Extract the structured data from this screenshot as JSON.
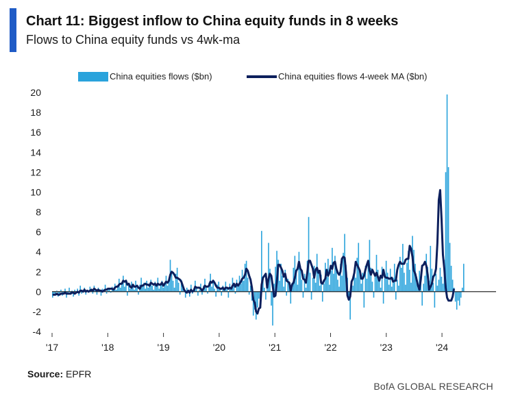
{
  "header": {
    "title": "Chart 11: Biggest inflow to China equity funds in 8 weeks",
    "subtitle": "Flows to China equity funds vs 4wk-ma"
  },
  "legend": {
    "bar_label": "China equities flows ($bn)",
    "line_label": "China equities flows 4-week MA ($bn)"
  },
  "footer": {
    "source_label": "Source:",
    "source_value": "EPFR",
    "brand": "BofA GLOBAL RESEARCH"
  },
  "colors": {
    "bars": "#2aa3dc",
    "line": "#0c1f5c",
    "accent": "#1f5bc6"
  },
  "chart_data": {
    "type": "bar",
    "title": "Chart 11: Biggest inflow to China equity funds in 8 weeks",
    "subtitle": "Flows to China equity funds vs 4wk-ma",
    "xlabel": "",
    "ylabel": "",
    "ylim": [
      -4,
      20
    ],
    "yticks": [
      -4,
      -2,
      0,
      2,
      4,
      6,
      8,
      10,
      12,
      14,
      16,
      18,
      20
    ],
    "xtick_labels": [
      "'17",
      "'18",
      "'19",
      "'20",
      "'21",
      "'22",
      "'23",
      "'24"
    ],
    "grid": false,
    "legend_position": "top",
    "x_frequency": "weekly",
    "x_start": "2017-01",
    "x_end": "2024-05",
    "series": [
      {
        "name": "China equities flows ($bn)",
        "type": "bar",
        "values": [
          -0.6,
          -0.2,
          -0.4,
          0.1,
          -0.5,
          -0.3,
          0.2,
          -0.4,
          -0.1,
          0.3,
          -0.6,
          -0.2,
          0.4,
          -0.3,
          0.1,
          -0.5,
          0.2,
          -0.1,
          0.3,
          -0.4,
          0.6,
          -0.2,
          0.1,
          0.4,
          -0.3,
          0.2,
          -0.1,
          0.5,
          0.3,
          -0.2,
          0.6,
          0.1,
          -0.3,
          0.4,
          0.2,
          -0.4,
          0.3,
          0.1,
          0.7,
          -0.2,
          0.4,
          0.2,
          -0.1,
          0.5,
          0.3,
          0.8,
          0.2,
          0.6,
          1.3,
          0.4,
          0.9,
          1.6,
          0.5,
          1.2,
          -0.4,
          0.8,
          0.3,
          1.0,
          0.6,
          0.2,
          1.1,
          0.4,
          -0.3,
          0.7,
          1.4,
          0.5,
          0.9,
          0.3,
          1.1,
          0.4,
          0.8,
          1.2,
          0.6,
          0.2,
          1.0,
          0.5,
          1.4,
          0.3,
          0.7,
          1.1,
          0.4,
          0.9,
          1.6,
          0.6,
          1.2,
          3.2,
          2.1,
          1.1,
          0.4,
          1.8,
          2.4,
          0.9,
          -0.3,
          1.2,
          0.5,
          0.2,
          -0.6,
          0.4,
          0.1,
          -0.5,
          0.7,
          -0.2,
          0.3,
          1.1,
          0.5,
          -0.4,
          0.2,
          0.8,
          -0.3,
          0.6,
          1.3,
          0.4,
          -0.2,
          0.9,
          1.8,
          0.5,
          1.2,
          0.3,
          -0.5,
          0.7,
          1.0,
          0.2,
          -0.4,
          0.6,
          0.3,
          1.0,
          0.4,
          -0.6,
          0.8,
          0.3,
          1.4,
          0.6,
          -0.2,
          1.2,
          0.5,
          1.6,
          0.8,
          2.2,
          1.1,
          2.8,
          3.1,
          1.4,
          -0.3,
          0.6,
          -0.9,
          -2.4,
          -1.8,
          -2.8,
          -1.6,
          -0.7,
          -1.2,
          6.1,
          1.5,
          0.4,
          -0.8,
          0.6,
          4.9,
          2.3,
          -1.4,
          -3.4,
          0.8,
          2.5,
          4.1,
          3.2,
          1.1,
          2.8,
          1.6,
          0.5,
          2.2,
          -0.4,
          1.3,
          0.6,
          -1.2,
          0.9,
          2.4,
          3.6,
          1.8,
          0.7,
          4.0,
          2.6,
          1.2,
          -0.6,
          1.8,
          0.4,
          3.1,
          7.5,
          1.9,
          -0.8,
          1.4,
          2.6,
          0.9,
          3.8,
          2.2,
          0.6,
          1.7,
          -1.0,
          0.8,
          2.9,
          1.5,
          3.3,
          0.7,
          2.1,
          4.4,
          1.8,
          3.6,
          2.4,
          1.2,
          0.5,
          2.8,
          1.6,
          3.9,
          5.8,
          2.7,
          1.4,
          -0.9,
          -2.8,
          1.1,
          0.6,
          2.2,
          1.4,
          3.4,
          4.9,
          2.1,
          0.8,
          1.9,
          -1.6,
          2.6,
          1.3,
          3.2,
          5.2,
          2.4,
          1.0,
          -0.6,
          1.8,
          3.7,
          2.2,
          1.1,
          0.4,
          2.5,
          -1.2,
          1.6,
          3.1,
          1.9,
          0.7,
          2.3,
          0.5,
          1.4,
          2.8,
          -0.8,
          1.2,
          0.6,
          3.5,
          2.4,
          4.8,
          1.9,
          0.7,
          2.9,
          4.1,
          2.2,
          0.9,
          5.6,
          4.2,
          2.8,
          1.5,
          0.6,
          2.1,
          1.2,
          -1.4,
          0.8,
          1.6,
          3.8,
          2.5,
          1.1,
          4.6,
          2.3,
          0.9,
          -1.6,
          1.8,
          0.6,
          1.2,
          2.4,
          1.5,
          0.8,
          3.2,
          12.0,
          19.8,
          12.5,
          4.9,
          2.6,
          1.2,
          0.4,
          -1.0,
          -1.8,
          -0.9,
          -1.4,
          -0.6,
          0.4,
          2.8
        ]
      },
      {
        "name": "China equities flows 4-week MA ($bn)",
        "type": "line",
        "values": [
          -0.3,
          -0.3,
          -0.3,
          -0.2,
          -0.3,
          -0.3,
          -0.2,
          -0.2,
          -0.2,
          -0.1,
          -0.2,
          -0.2,
          -0.2,
          -0.2,
          -0.1,
          -0.1,
          -0.2,
          -0.1,
          0.0,
          -0.1,
          0.1,
          0.1,
          0.0,
          0.2,
          0.0,
          0.1,
          0.0,
          0.1,
          0.2,
          0.1,
          0.3,
          0.2,
          0.1,
          0.2,
          0.1,
          0.1,
          0.0,
          0.1,
          0.2,
          0.2,
          0.3,
          0.3,
          0.3,
          0.3,
          0.2,
          0.4,
          0.5,
          0.5,
          0.7,
          0.8,
          0.8,
          1.1,
          1.0,
          1.1,
          0.7,
          0.8,
          0.5,
          0.4,
          0.7,
          0.5,
          0.5,
          0.6,
          0.4,
          0.3,
          0.6,
          0.6,
          0.7,
          0.8,
          0.7,
          0.7,
          0.6,
          0.9,
          0.8,
          0.7,
          0.8,
          0.6,
          0.8,
          0.7,
          0.7,
          0.9,
          0.6,
          0.8,
          1.0,
          0.9,
          1.1,
          1.7,
          2.0,
          1.9,
          1.7,
          1.4,
          1.4,
          1.3,
          1.2,
          1.0,
          0.6,
          0.2,
          0.0,
          -0.1,
          0.1,
          -0.1,
          0.2,
          0.0,
          0.1,
          0.5,
          0.4,
          0.4,
          0.4,
          0.3,
          0.1,
          0.3,
          0.6,
          0.5,
          0.5,
          0.6,
          1.0,
          0.9,
          1.1,
          0.9,
          0.6,
          0.4,
          0.4,
          0.3,
          0.3,
          0.4,
          0.2,
          0.4,
          0.4,
          0.3,
          0.4,
          0.3,
          0.6,
          0.8,
          0.5,
          0.8,
          0.6,
          0.8,
          1.0,
          1.3,
          1.4,
          1.7,
          2.3,
          2.1,
          1.6,
          1.2,
          0.4,
          -0.8,
          -1.1,
          -2.0,
          -2.2,
          -1.7,
          -1.6,
          0.7,
          1.4,
          1.6,
          1.8,
          0.4,
          1.3,
          1.8,
          1.6,
          0.6,
          -0.5,
          -0.4,
          1.0,
          2.7,
          2.7,
          2.4,
          2.1,
          1.5,
          1.8,
          1.1,
          1.0,
          0.9,
          0.1,
          0.7,
          0.9,
          1.4,
          2.1,
          2.3,
          3.0,
          2.3,
          2.1,
          1.3,
          1.2,
          0.9,
          1.9,
          3.1,
          3.1,
          2.7,
          2.3,
          1.4,
          2.2,
          2.4,
          1.9,
          2.1,
          0.9,
          0.8,
          1.1,
          1.3,
          2.2,
          1.6,
          1.9,
          2.6,
          2.3,
          2.9,
          3.0,
          2.3,
          1.9,
          1.7,
          2.0,
          3.3,
          3.5,
          3.4,
          1.9,
          -0.4,
          -0.8,
          -0.5,
          1.0,
          1.3,
          1.9,
          3.0,
          2.7,
          2.4,
          2.1,
          1.3,
          1.3,
          1.6,
          2.2,
          2.7,
          3.1,
          2.1,
          1.7,
          2.2,
          1.9,
          1.6,
          1.9,
          1.5,
          1.1,
          1.6,
          1.4,
          2.2,
          1.5,
          1.4,
          1.4,
          1.3,
          1.3,
          1.4,
          1.0,
          1.1,
          1.1,
          2.2,
          2.7,
          3.0,
          2.8,
          2.8,
          2.8,
          3.2,
          3.3,
          3.3,
          4.6,
          4.3,
          3.5,
          2.1,
          1.8,
          1.2,
          0.6,
          0.2,
          1.2,
          2.6,
          2.7,
          3.0,
          2.6,
          1.7,
          0.2,
          0.5,
          0.8,
          1.5,
          1.7,
          2.3,
          4.9,
          9.2,
          10.2,
          7.3,
          3.7,
          2.3,
          0.4,
          -0.6,
          -0.9,
          -0.9,
          -0.9,
          -0.5,
          0.3
        ]
      }
    ]
  }
}
